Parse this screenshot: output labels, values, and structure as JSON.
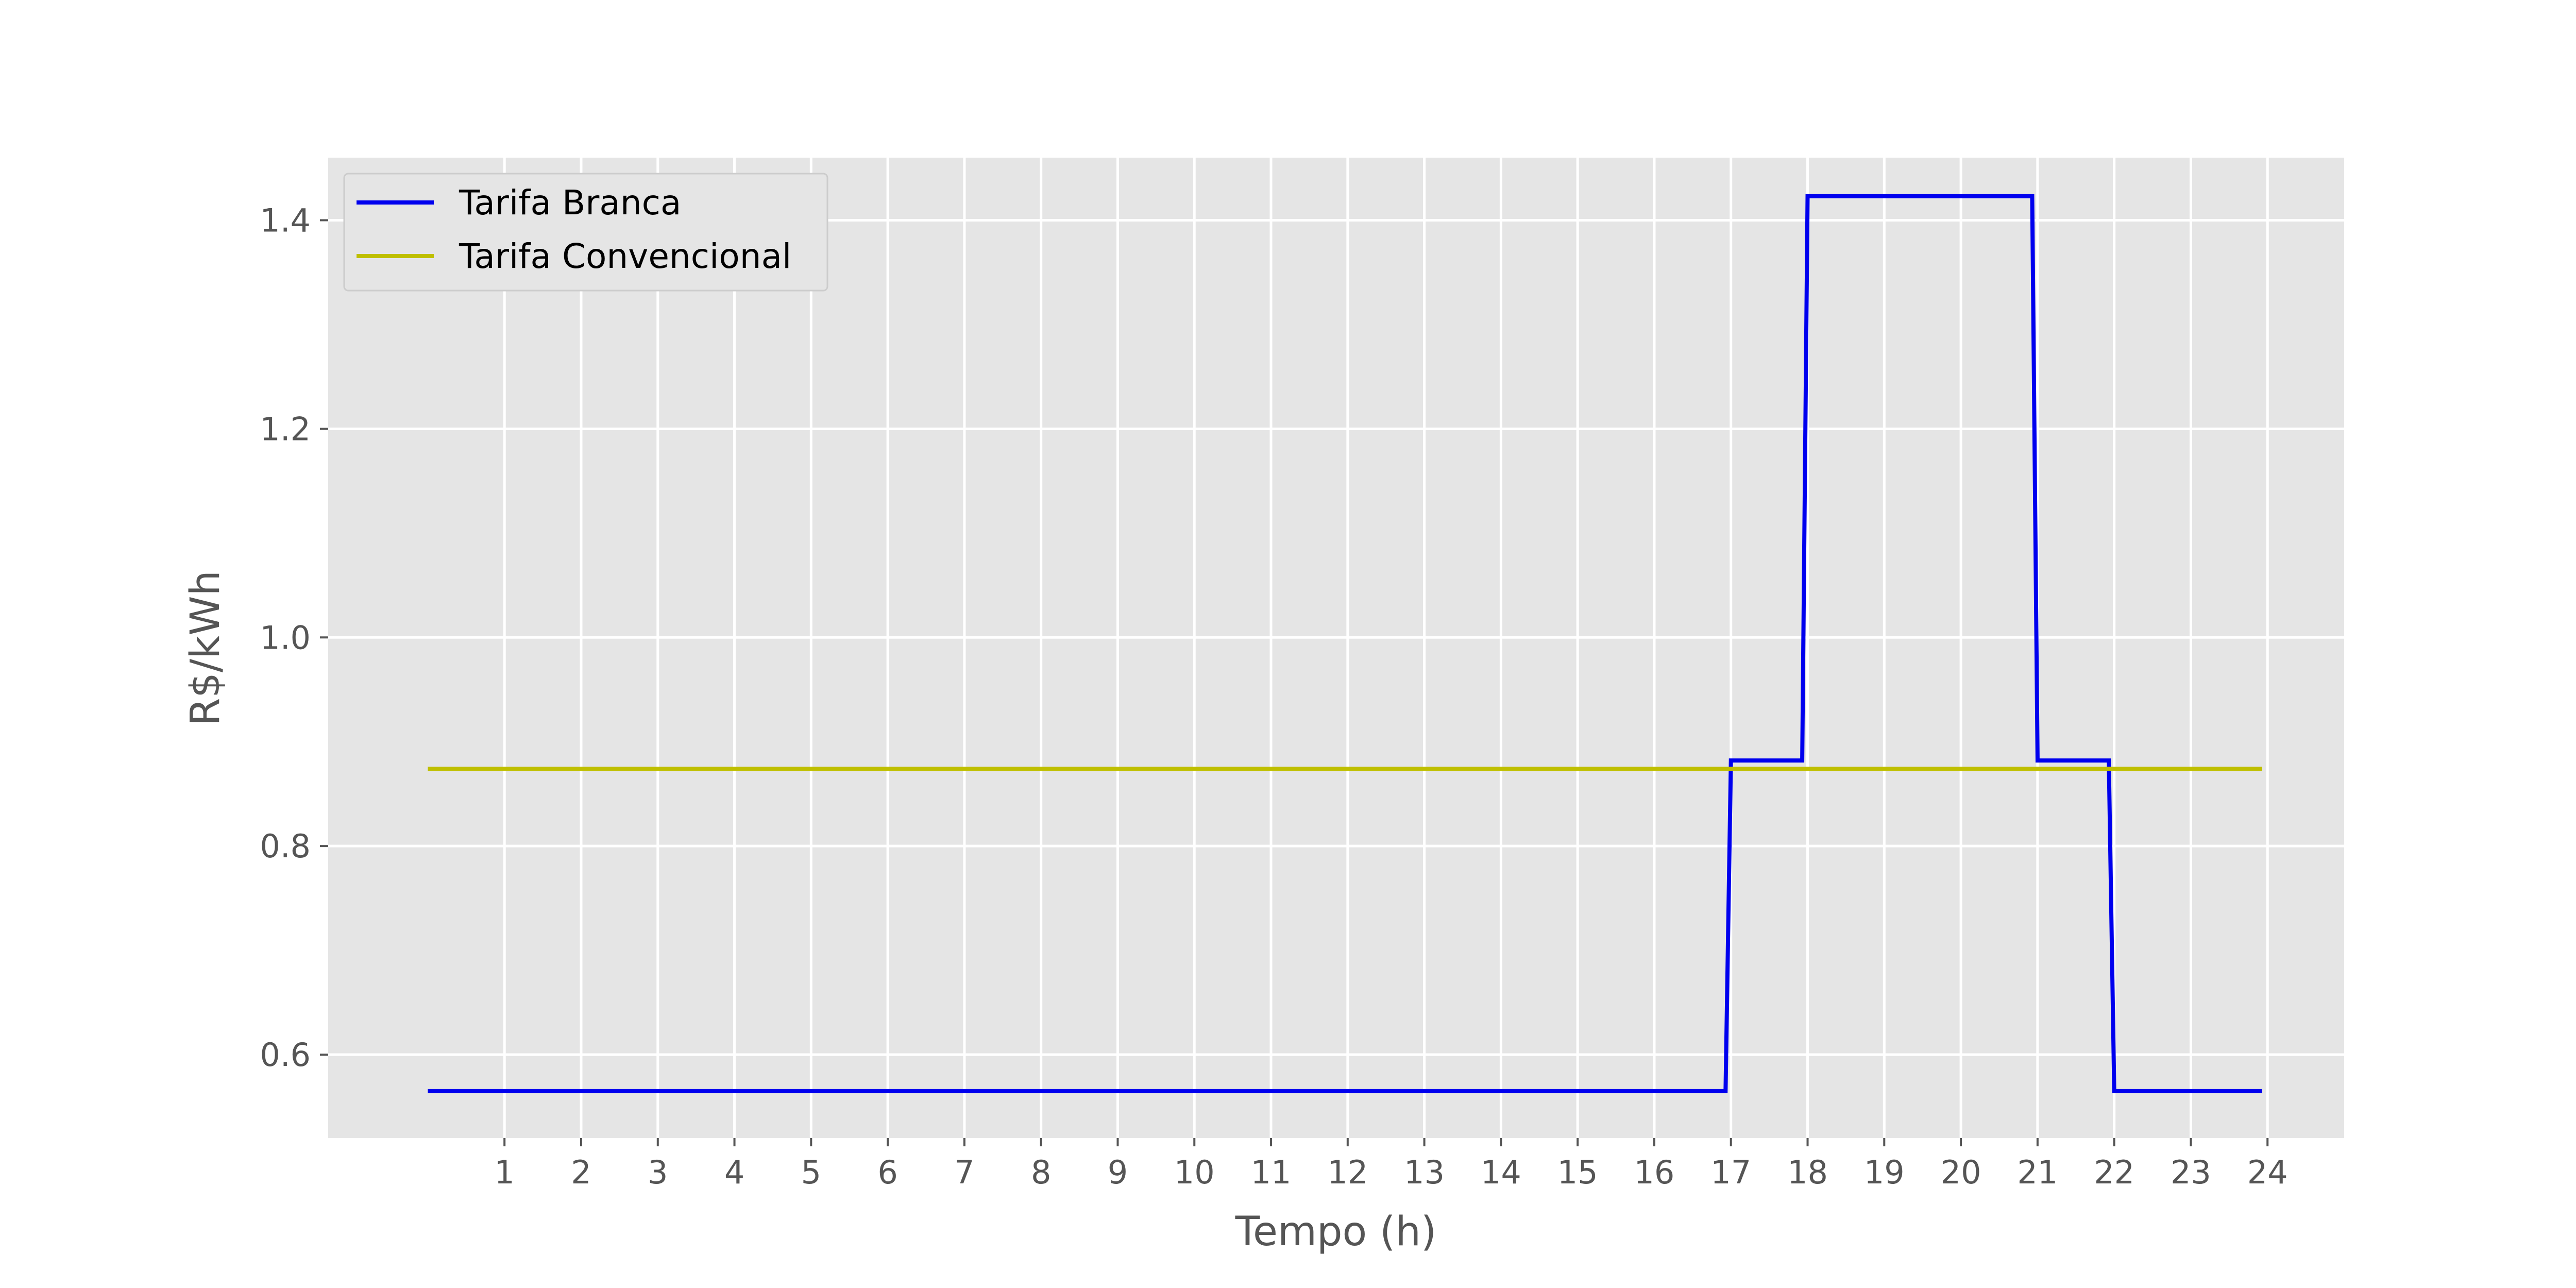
{
  "chart_data": {
    "type": "line",
    "title": "",
    "xlabel": "Tempo (h)",
    "ylabel": "R$/kWh",
    "xlim": [
      -1.3,
      25
    ],
    "ylim": [
      0.52,
      1.46
    ],
    "xticks": [
      1,
      2,
      3,
      4,
      5,
      6,
      7,
      8,
      9,
      10,
      11,
      12,
      13,
      14,
      15,
      16,
      17,
      18,
      19,
      20,
      21,
      22,
      23,
      24
    ],
    "yticks": [
      0.6,
      0.8,
      1.0,
      1.2,
      1.4
    ],
    "ytick_labels": [
      "0.6",
      "0.8",
      "1.0",
      "1.2",
      "1.4"
    ],
    "grid": true,
    "legend_position": "top-left",
    "series": [
      {
        "name": "Tarifa Branca",
        "color": "#0000ee",
        "x": [
          0,
          16.93,
          17.0,
          17.93,
          18.0,
          20.93,
          21.0,
          21.93,
          22.0,
          23.93
        ],
        "y": [
          0.565,
          0.565,
          0.882,
          0.882,
          1.423,
          1.423,
          0.882,
          0.882,
          0.565,
          0.565
        ]
      },
      {
        "name": "Tarifa Convencional",
        "color": "#bfbf00",
        "x": [
          0,
          23.93
        ],
        "y": [
          0.874,
          0.874
        ]
      }
    ]
  },
  "style": {
    "plot_bg": "#e5e5e5",
    "grid_color": "#ffffff"
  }
}
